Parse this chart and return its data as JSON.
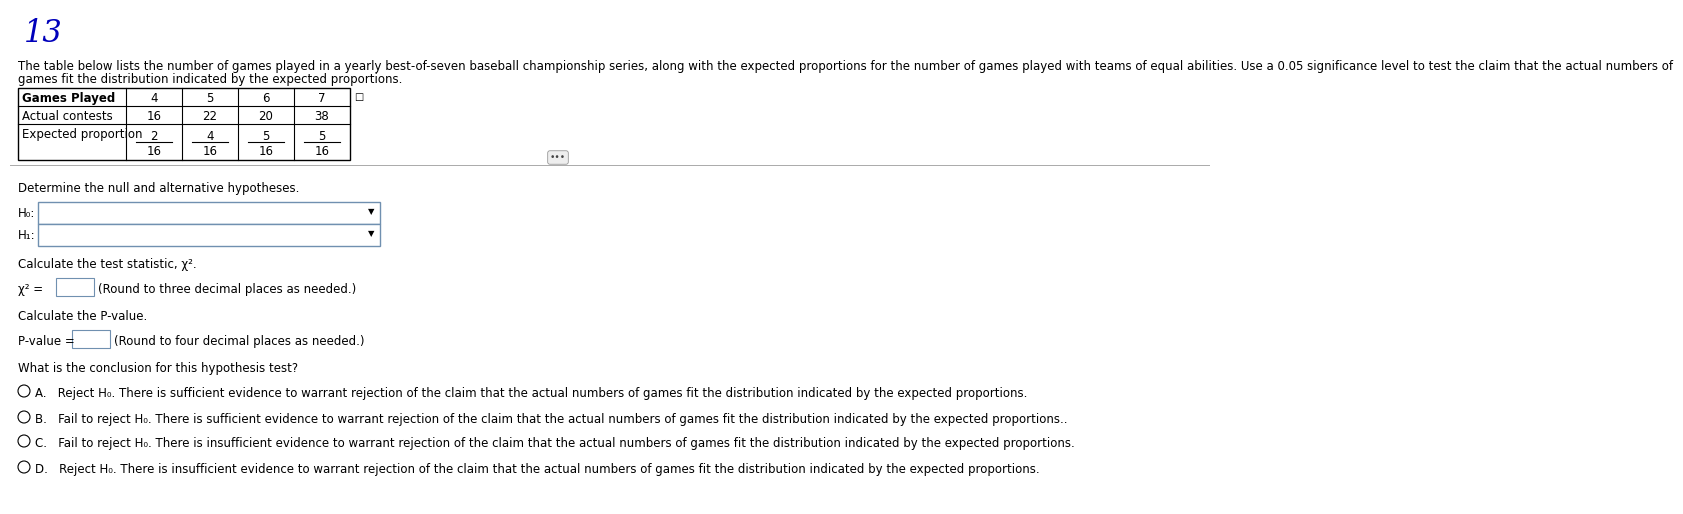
{
  "number": "13",
  "intro_text_line1": "The table below lists the number of games played in a yearly best-of-seven baseball championship series, along with the expected proportions for the number of games played with teams of equal abilities. Use a 0.05 significance level to test the claim that the actual numbers of",
  "intro_text_line2": "games fit the distribution indicated by the expected proportions.",
  "table_headers": [
    "Games Played",
    "4",
    "5",
    "6",
    "7"
  ],
  "row1_label": "Actual contests",
  "row1_vals": [
    "16",
    "22",
    "20",
    "38"
  ],
  "row2_label": "Expected proportion",
  "row2_nums": [
    "2",
    "4",
    "5",
    "5"
  ],
  "row2_dens": [
    "16",
    "16",
    "16",
    "16"
  ],
  "section1": "Determine the null and alternative hypotheses.",
  "h0_label": "H₀:",
  "h1_label": "H₁:",
  "section2": "Calculate the test statistic, χ².",
  "chi_eq": "χ² =",
  "chi_note": "(Round to three decimal places as needed.)",
  "section3": "Calculate the P-value.",
  "pval_eq": "P-value =",
  "pval_note": "(Round to four decimal places as needed.)",
  "section4": "What is the conclusion for this hypothesis test?",
  "optionA": "A.   Reject H₀. There is sufficient evidence to warrant rejection of the claim that the actual numbers of games fit the distribution indicated by the expected proportions.",
  "optionB": "B.   Fail to reject H₀. There is sufficient evidence to warrant rejection of the claim that the actual numbers of games fit the distribution indicated by the expected proportions..",
  "optionC": "C.   Fail to reject H₀. There is insufficient evidence to warrant rejection of the claim that the actual numbers of games fit the distribution indicated by the expected proportions.",
  "optionD": "D.   Reject H₀. There is insufficient evidence to warrant rejection of the claim that the actual numbers of games fit the distribution indicated by the expected proportions.",
  "bg_color": "#ffffff",
  "text_color": "#000000",
  "number_color": "#0000bb",
  "box_border_color": "#7090b0"
}
